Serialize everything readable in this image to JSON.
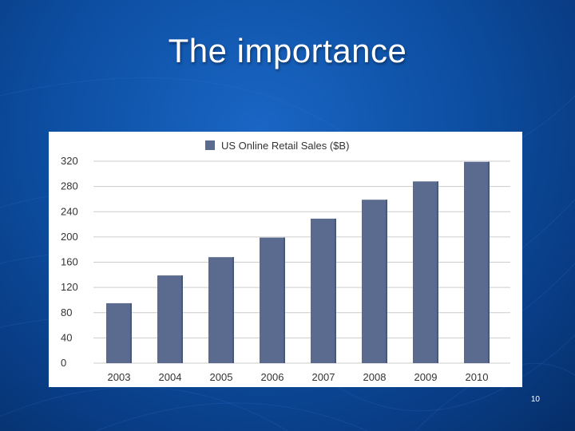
{
  "slide": {
    "title": "The importance",
    "page_number": "10"
  },
  "colors": {
    "bar": "#5b6b8f",
    "grid": "#cccccc",
    "background": "#0d4fa3"
  },
  "chart_data": {
    "type": "bar",
    "title": "",
    "xlabel": "",
    "ylabel": "",
    "legend": {
      "position": "top",
      "entries": [
        "US Online Retail Sales ($B)"
      ]
    },
    "categories": [
      "2003",
      "2004",
      "2005",
      "2006",
      "2007",
      "2008",
      "2009",
      "2010"
    ],
    "series": [
      {
        "name": "US Online Retail Sales ($B)",
        "values": [
          95,
          139,
          168,
          199,
          229,
          259,
          288,
          319
        ]
      }
    ],
    "ylim": [
      0,
      320
    ],
    "yticks": [
      0,
      40,
      80,
      120,
      160,
      200,
      240,
      280,
      320
    ],
    "grid": true
  }
}
